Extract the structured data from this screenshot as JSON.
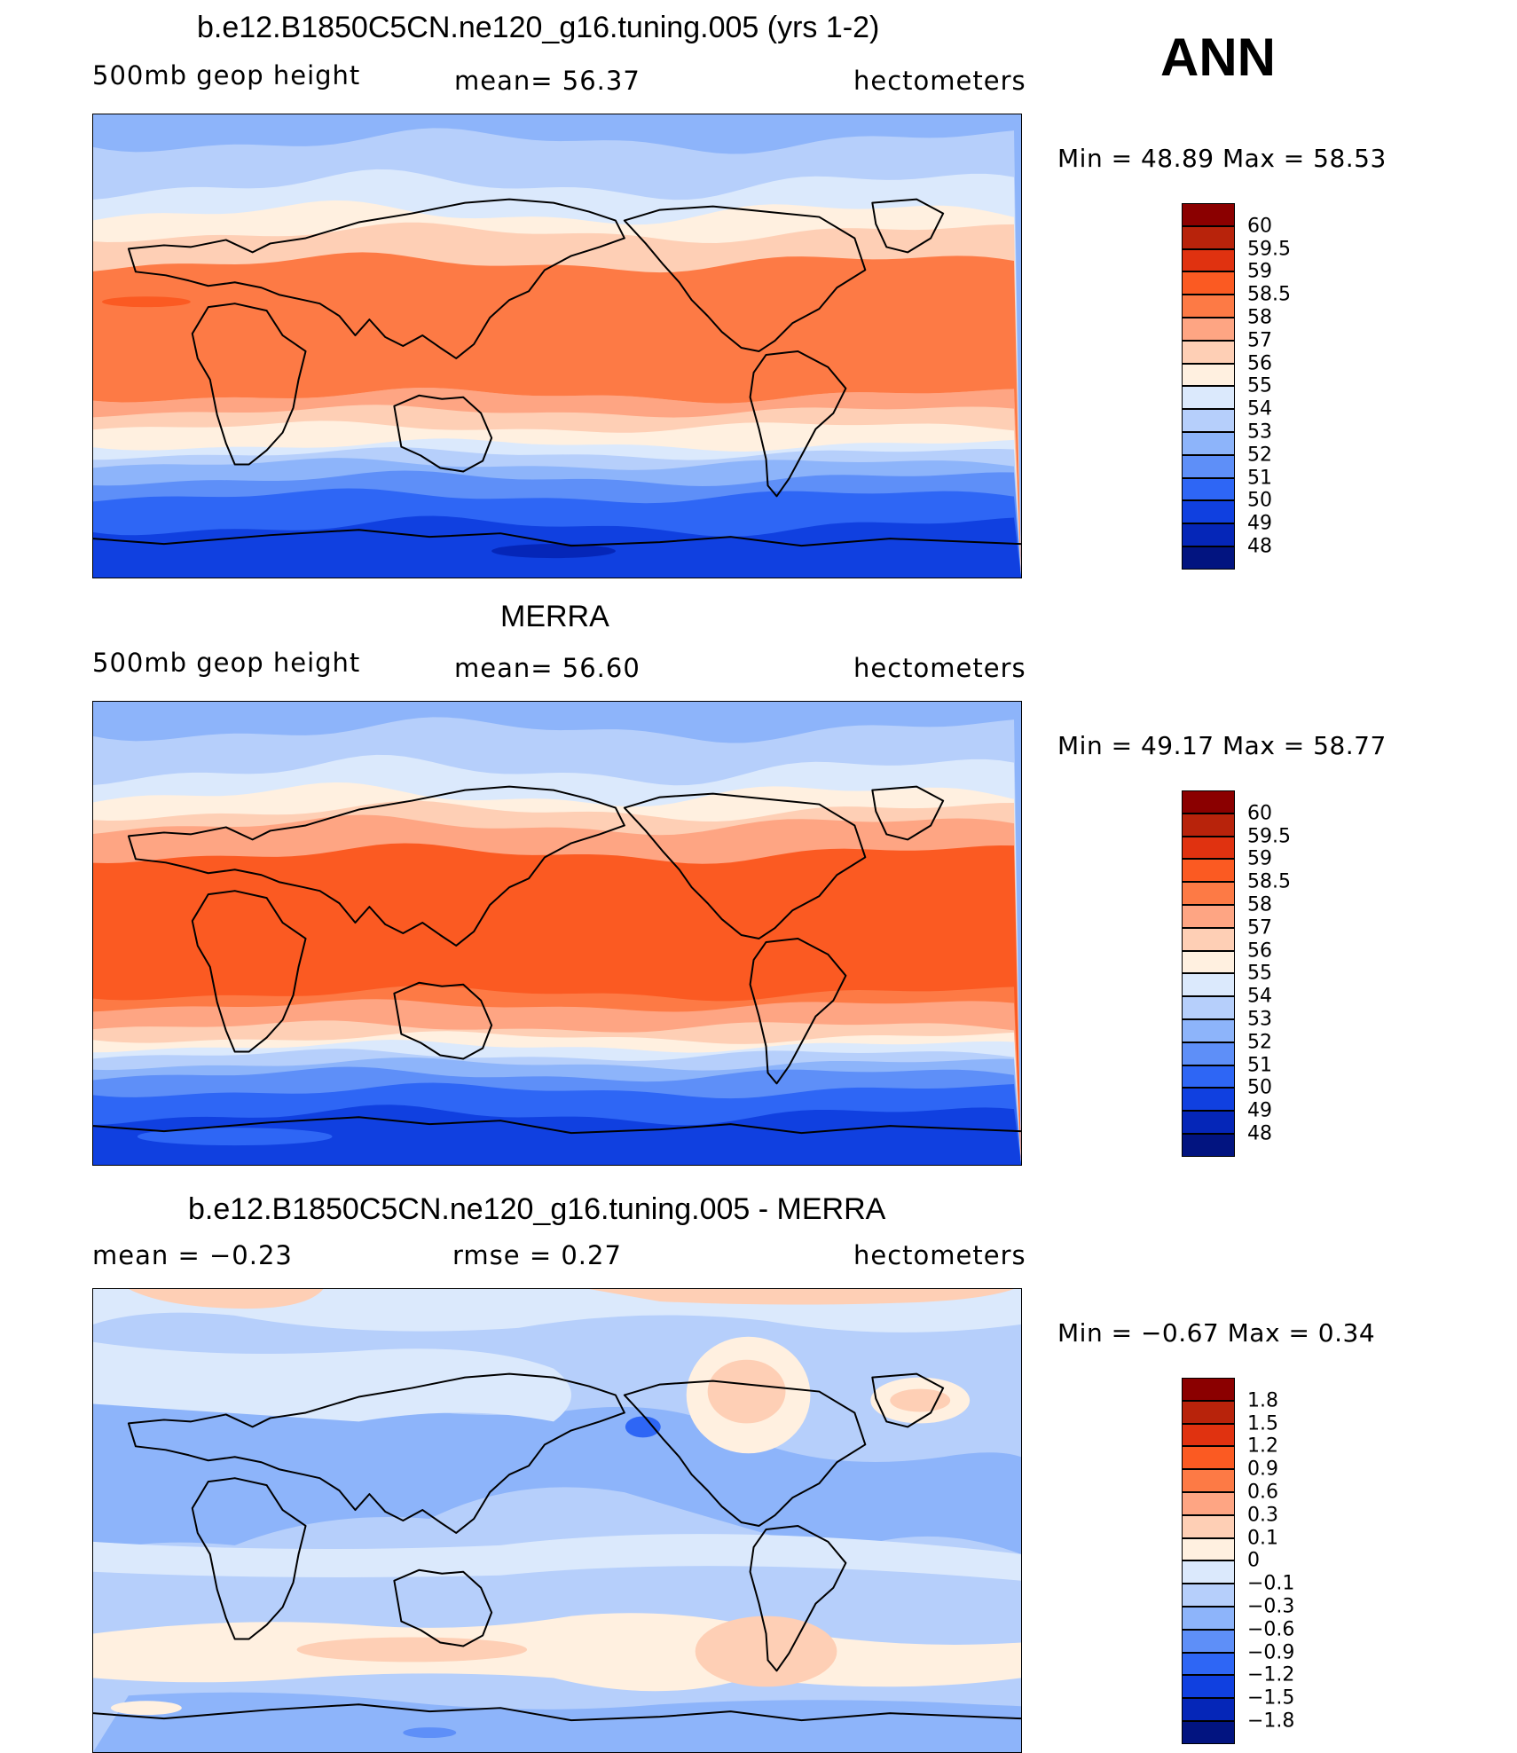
{
  "header": {
    "season": "ANN"
  },
  "panels": [
    {
      "title": "b.e12.B1850C5CN.ne120_g16.tuning.005 (yrs 1-2)",
      "left_label": "500mb  geop  height",
      "center_label": "mean=   56.37",
      "units": "hectometers",
      "min_max": "Min  =    48.89  Max  =    58.53",
      "colorbar": {
        "labels": [
          "60",
          "59.5",
          "59",
          "58.5",
          "58",
          "57",
          "56",
          "55",
          "54",
          "53",
          "52",
          "51",
          "50",
          "49",
          "48"
        ],
        "colors": [
          "#8b0000",
          "#b8230b",
          "#e03210",
          "#fb5a22",
          "#fd7a45",
          "#fea583",
          "#fecfb5",
          "#fff0e0",
          "#dbe9fc",
          "#b6cffb",
          "#8db4fa",
          "#5e8ff8",
          "#2e66f5",
          "#1040e0",
          "#0526b8",
          "#021480"
        ]
      },
      "field": "model"
    },
    {
      "title": "MERRA",
      "left_label": "500mb  geop  height",
      "center_label": "mean=   56.60",
      "units": "hectometers",
      "min_max": "Min  =    49.17  Max  =    58.77",
      "colorbar": {
        "labels": [
          "60",
          "59.5",
          "59",
          "58.5",
          "58",
          "57",
          "56",
          "55",
          "54",
          "53",
          "52",
          "51",
          "50",
          "49",
          "48"
        ],
        "colors": [
          "#8b0000",
          "#b8230b",
          "#e03210",
          "#fb5a22",
          "#fd7a45",
          "#fea583",
          "#fecfb5",
          "#fff0e0",
          "#dbe9fc",
          "#b6cffb",
          "#8db4fa",
          "#5e8ff8",
          "#2e66f5",
          "#1040e0",
          "#0526b8",
          "#021480"
        ]
      },
      "field": "obs"
    },
    {
      "title": "b.e12.B1850C5CN.ne120_g16.tuning.005 - MERRA",
      "left_label": "mean  =    −0.23",
      "center_label": "rmse  =     0.27",
      "units": "hectometers",
      "min_max": "Min  =    −0.67  Max  =      0.34",
      "colorbar": {
        "labels": [
          "1.8",
          "1.5",
          "1.2",
          "0.9",
          "0.6",
          "0.3",
          "0.1",
          "0",
          "−0.1",
          "−0.3",
          "−0.6",
          "−0.9",
          "−1.2",
          "−1.5",
          "−1.8"
        ],
        "colors": [
          "#8b0000",
          "#b8230b",
          "#e03210",
          "#fb5a22",
          "#fd7a45",
          "#fea583",
          "#fecfb5",
          "#fff0e0",
          "#dbe9fc",
          "#b6cffb",
          "#8db4fa",
          "#5e8ff8",
          "#2e66f5",
          "#1040e0",
          "#0526b8",
          "#021480"
        ]
      },
      "field": "diff"
    }
  ],
  "colors": {
    "land_outline": "#000000",
    "diff_background": "#b6cffb",
    "diff_negative": "#8db4fa",
    "diff_positive": "#fecfb5"
  }
}
